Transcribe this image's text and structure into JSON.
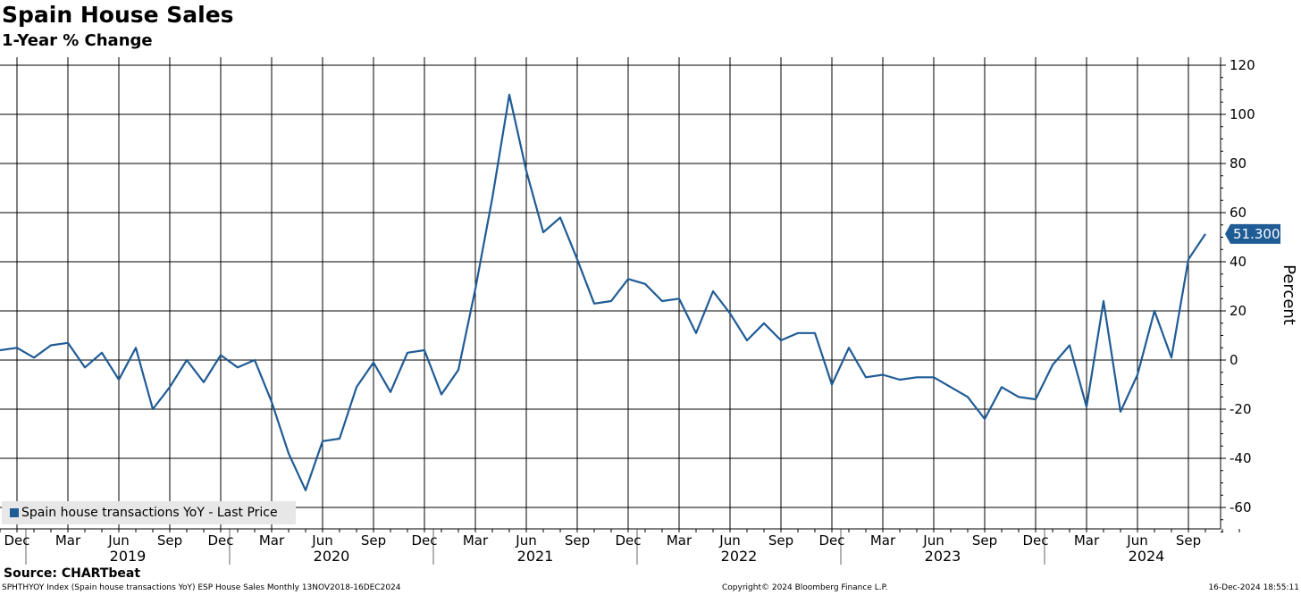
{
  "header": {
    "title": "Spain House Sales",
    "subtitle": "1-Year % Change"
  },
  "legend": {
    "label": "Spain house transactions YoY - Last Price"
  },
  "last_value_label": "51.300",
  "source": "Source: CHARTbeat",
  "footer": {
    "left": "SPHTHYOY Index (Spain house transactions YoY) ESP House Sales  Monthly 13NOV2018-16DEC2024",
    "center": "Copyright© 2024 Bloomberg Finance L.P.",
    "right": "16-Dec-2024 18:55:11"
  },
  "colors": {
    "series": "#1f5b95",
    "grid": "#000000",
    "legend_bg": "#e7e7e7"
  },
  "chart_data": {
    "type": "line",
    "ylabel": "Percent",
    "ylim": [
      -70,
      125
    ],
    "yticks": [
      120,
      100,
      80,
      60,
      40,
      20,
      0,
      -20,
      -40,
      -60
    ],
    "y_axis_side": "right",
    "grid": true,
    "legend_position": "bottom-left",
    "x_start": "2018-11",
    "x_end": "2024-12",
    "x_tick_labels": [
      {
        "date": "2018-12",
        "label": "Dec"
      },
      {
        "date": "2019-03",
        "label": "Mar"
      },
      {
        "date": "2019-06",
        "label": "Jun"
      },
      {
        "date": "2019-09",
        "label": "Sep"
      },
      {
        "date": "2019-12",
        "label": "Dec"
      },
      {
        "date": "2020-03",
        "label": "Mar"
      },
      {
        "date": "2020-06",
        "label": "Jun"
      },
      {
        "date": "2020-09",
        "label": "Sep"
      },
      {
        "date": "2020-12",
        "label": "Dec"
      },
      {
        "date": "2021-03",
        "label": "Mar"
      },
      {
        "date": "2021-06",
        "label": "Jun"
      },
      {
        "date": "2021-09",
        "label": "Sep"
      },
      {
        "date": "2021-12",
        "label": "Dec"
      },
      {
        "date": "2022-03",
        "label": "Mar"
      },
      {
        "date": "2022-06",
        "label": "Jun"
      },
      {
        "date": "2022-09",
        "label": "Sep"
      },
      {
        "date": "2022-12",
        "label": "Dec"
      },
      {
        "date": "2023-03",
        "label": "Mar"
      },
      {
        "date": "2023-06",
        "label": "Jun"
      },
      {
        "date": "2023-09",
        "label": "Sep"
      },
      {
        "date": "2023-12",
        "label": "Dec"
      },
      {
        "date": "2024-03",
        "label": "Mar"
      },
      {
        "date": "2024-06",
        "label": "Jun"
      },
      {
        "date": "2024-09",
        "label": "Sep"
      }
    ],
    "year_labels": [
      {
        "date": "2019-07",
        "label": "2019"
      },
      {
        "date": "2020-07",
        "label": "2020"
      },
      {
        "date": "2021-07",
        "label": "2021"
      },
      {
        "date": "2022-07",
        "label": "2022"
      },
      {
        "date": "2023-07",
        "label": "2023"
      },
      {
        "date": "2024-07",
        "label": "2024"
      }
    ],
    "series": [
      {
        "name": "Spain house transactions YoY - Last Price",
        "color": "#1f5b95",
        "x": [
          "2018-11",
          "2018-12",
          "2019-01",
          "2019-02",
          "2019-03",
          "2019-04",
          "2019-05",
          "2019-06",
          "2019-07",
          "2019-08",
          "2019-09",
          "2019-10",
          "2019-11",
          "2019-12",
          "2020-01",
          "2020-02",
          "2020-03",
          "2020-04",
          "2020-05",
          "2020-06",
          "2020-07",
          "2020-08",
          "2020-09",
          "2020-10",
          "2020-11",
          "2020-12",
          "2021-01",
          "2021-02",
          "2021-03",
          "2021-04",
          "2021-05",
          "2021-06",
          "2021-07",
          "2021-08",
          "2021-09",
          "2021-10",
          "2021-11",
          "2021-12",
          "2022-01",
          "2022-02",
          "2022-03",
          "2022-04",
          "2022-05",
          "2022-06",
          "2022-07",
          "2022-08",
          "2022-09",
          "2022-10",
          "2022-11",
          "2022-12",
          "2023-01",
          "2023-02",
          "2023-03",
          "2023-04",
          "2023-05",
          "2023-06",
          "2023-07",
          "2023-08",
          "2023-09",
          "2023-10",
          "2023-11",
          "2023-12",
          "2024-01",
          "2024-02",
          "2024-03",
          "2024-04",
          "2024-05",
          "2024-06",
          "2024-07",
          "2024-08",
          "2024-09",
          "2024-10"
        ],
        "values": [
          4,
          5,
          1,
          6,
          7,
          -3,
          3,
          -8,
          5,
          -20,
          -11,
          0,
          -9,
          2,
          -3,
          0,
          -17,
          -38,
          -53,
          -33,
          -32,
          -11,
          -1,
          -13,
          3,
          4,
          -14,
          -4,
          29,
          66,
          108,
          77,
          52,
          58,
          41,
          23,
          24,
          33,
          31,
          24,
          25,
          11,
          28,
          19,
          8,
          15,
          8,
          11,
          11,
          -10,
          5,
          -7,
          -6,
          -8,
          -7,
          -7,
          -11,
          -15,
          -24,
          -11,
          -15,
          -16,
          -2,
          6,
          -19,
          24,
          -21,
          -6,
          20,
          1,
          41,
          51.3
        ]
      }
    ]
  }
}
